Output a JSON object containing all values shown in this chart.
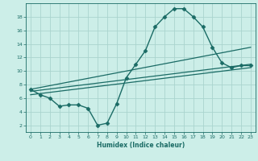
{
  "xlabel": "Humidex (Indice chaleur)",
  "bg_color": "#cceee8",
  "grid_color": "#aad4ce",
  "line_color": "#1a6b65",
  "xlim": [
    -0.5,
    23.5
  ],
  "ylim": [
    1,
    20
  ],
  "yticks": [
    2,
    4,
    6,
    8,
    10,
    12,
    14,
    16,
    18
  ],
  "xticks": [
    0,
    1,
    2,
    3,
    4,
    5,
    6,
    7,
    8,
    9,
    10,
    11,
    12,
    13,
    14,
    15,
    16,
    17,
    18,
    19,
    20,
    21,
    22,
    23
  ],
  "series": [
    {
      "x": [
        0,
        1,
        2,
        3,
        4,
        5,
        6,
        7,
        8,
        9,
        10,
        11,
        12,
        13,
        14,
        15,
        16,
        17,
        18,
        19,
        20,
        21,
        22,
        23
      ],
      "y": [
        7.3,
        6.5,
        6.0,
        4.8,
        5.0,
        5.0,
        4.5,
        2.0,
        2.3,
        5.2,
        9.0,
        11.0,
        13.0,
        16.5,
        18.0,
        19.2,
        19.2,
        18.0,
        16.5,
        13.5,
        11.2,
        10.5,
        10.8,
        10.8
      ],
      "marker": "D",
      "markersize": 2.5,
      "linewidth": 1.0
    },
    {
      "x": [
        0,
        23
      ],
      "y": [
        7.3,
        13.5
      ],
      "marker": null,
      "linewidth": 0.9
    },
    {
      "x": [
        0,
        23
      ],
      "y": [
        7.0,
        11.0
      ],
      "marker": null,
      "linewidth": 0.9
    },
    {
      "x": [
        0,
        23
      ],
      "y": [
        6.5,
        10.5
      ],
      "marker": null,
      "linewidth": 0.9
    }
  ]
}
